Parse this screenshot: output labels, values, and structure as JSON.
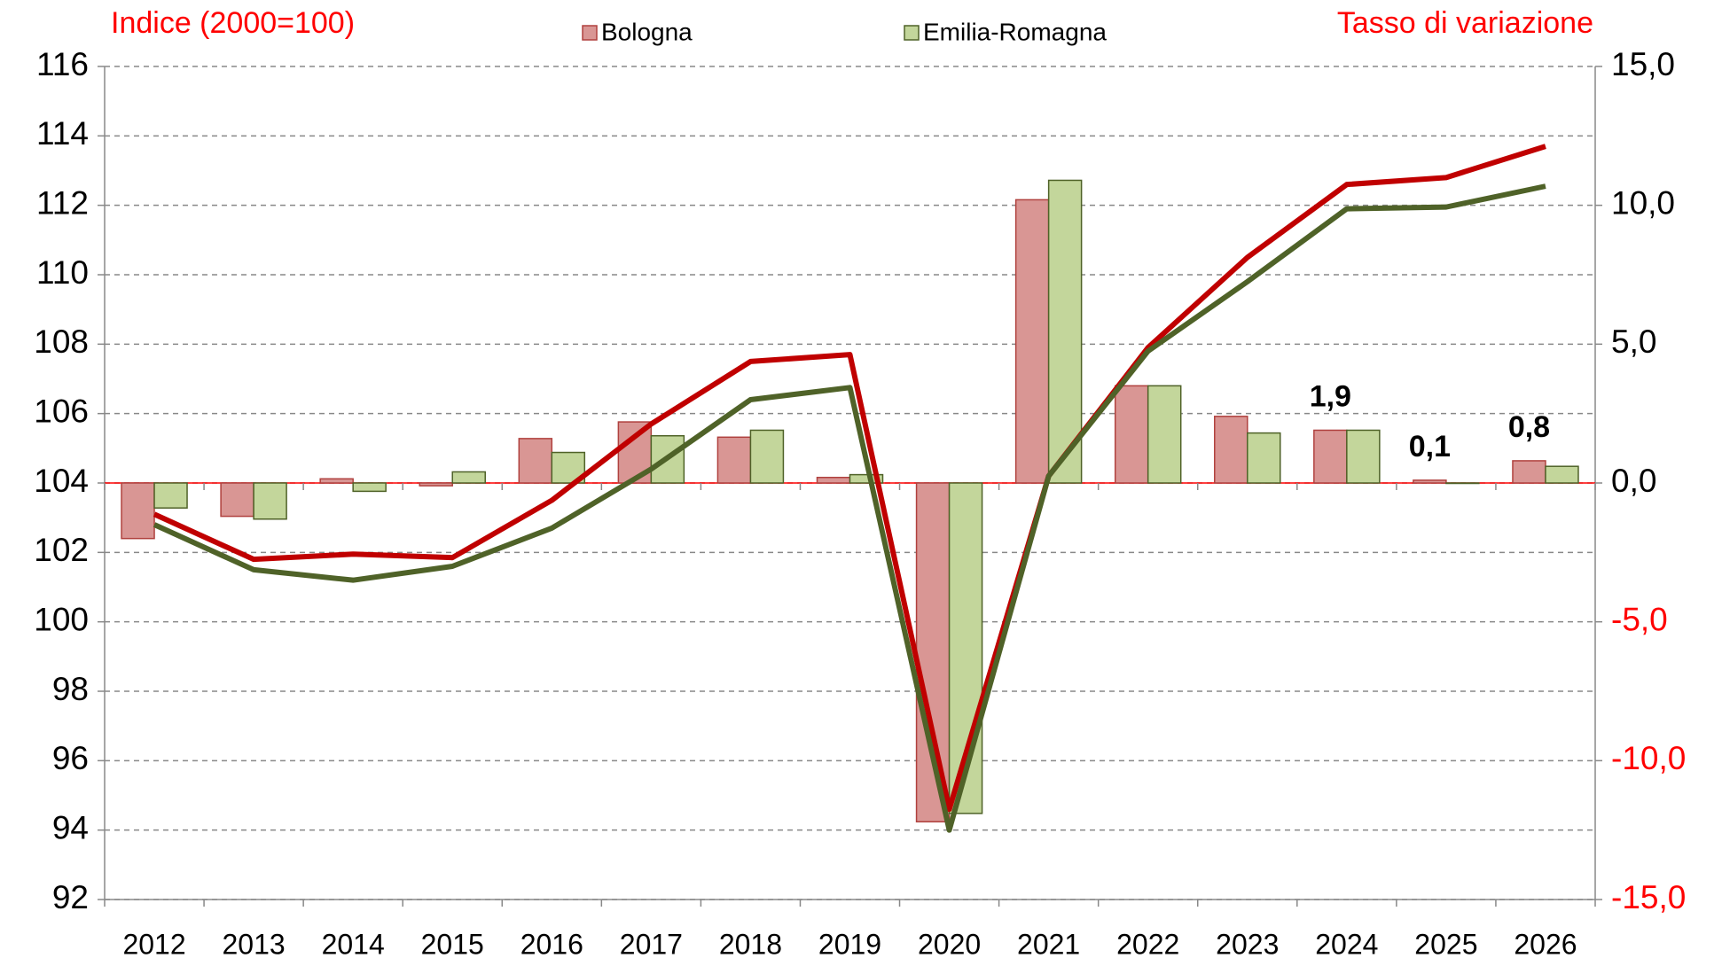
{
  "chart_data": {
    "type": "combo",
    "title_left": "Indice (2000=100)",
    "title_right": "Tasso di variazione",
    "categories": [
      "2012",
      "2013",
      "2014",
      "2015",
      "2016",
      "2017",
      "2018",
      "2019",
      "2020",
      "2021",
      "2022",
      "2023",
      "2024",
      "2025",
      "2026"
    ],
    "series": [
      {
        "name": "Bologna",
        "type": "bar",
        "axis": "y2",
        "color": "#d99694",
        "stroke": "#b0413e",
        "values": [
          -2.0,
          -1.2,
          0.15,
          -0.1,
          1.6,
          2.2,
          1.65,
          0.2,
          -12.2,
          10.2,
          3.5,
          2.4,
          1.9,
          0.1,
          0.8
        ],
        "value_labels": [
          null,
          null,
          null,
          null,
          null,
          null,
          null,
          null,
          null,
          null,
          null,
          null,
          "1,9",
          "0,1",
          "0,8"
        ]
      },
      {
        "name": "Emilia-Romagna",
        "type": "bar",
        "axis": "y2",
        "color": "#c3d69b",
        "stroke": "#4f6228",
        "values": [
          -0.9,
          -1.3,
          -0.3,
          0.4,
          1.1,
          1.7,
          1.9,
          0.3,
          -11.9,
          10.9,
          3.5,
          1.8,
          1.9,
          0.0,
          0.6
        ]
      },
      {
        "type": "line",
        "axis": "y",
        "color": "#c00000",
        "values": [
          103.1,
          101.8,
          101.95,
          101.85,
          103.5,
          105.7,
          107.5,
          107.7,
          94.6,
          104.2,
          107.9,
          110.5,
          112.6,
          112.8,
          113.7
        ]
      },
      {
        "type": "line",
        "axis": "y",
        "color": "#4f6228",
        "values": [
          102.8,
          101.5,
          101.2,
          101.6,
          102.7,
          104.4,
          106.4,
          106.75,
          94.0,
          104.2,
          107.8,
          109.8,
          111.9,
          111.95,
          112.55
        ]
      }
    ],
    "ylim": [
      92,
      116
    ],
    "yticks": [
      92,
      94,
      96,
      98,
      100,
      102,
      104,
      106,
      108,
      110,
      112,
      114,
      116
    ],
    "y2lim": [
      -15,
      15
    ],
    "y2ticks": [
      {
        "value": -15,
        "label": "-15,0"
      },
      {
        "value": -10,
        "label": "-10,0"
      },
      {
        "value": -5,
        "label": "-5,0"
      },
      {
        "value": 0,
        "label": "0,0"
      },
      {
        "value": 5,
        "label": "5,0"
      },
      {
        "value": 10,
        "label": "10,0"
      },
      {
        "value": 15,
        "label": "15,0"
      }
    ],
    "grid": true,
    "title_color": "#ff0000",
    "negative_tick_color": "#ff0000"
  }
}
